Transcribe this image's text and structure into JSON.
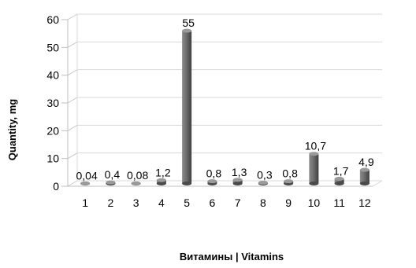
{
  "chart_data": {
    "type": "bar",
    "categories": [
      "1",
      "2",
      "3",
      "4",
      "5",
      "6",
      "7",
      "8",
      "9",
      "10",
      "11",
      "12"
    ],
    "values": [
      0.04,
      0.4,
      0.08,
      1.2,
      55,
      0.8,
      1.3,
      0.3,
      0.8,
      10.7,
      1.7,
      4.9
    ],
    "value_labels": [
      "0,04",
      "0,4",
      "0,08",
      "1,2",
      "55",
      "0,8",
      "1,3",
      "0,3",
      "0,8",
      "10,7",
      "1,7",
      "4,9"
    ],
    "y_ticks": [
      "0",
      "10",
      "20",
      "30",
      "40",
      "50",
      "60"
    ],
    "ylim": [
      0,
      60
    ],
    "xlabel": "Витамины | Vitamins",
    "ylabel": "Quantity, mg",
    "grid": true,
    "legend": "none",
    "bar_color": "#6e6e6e"
  }
}
